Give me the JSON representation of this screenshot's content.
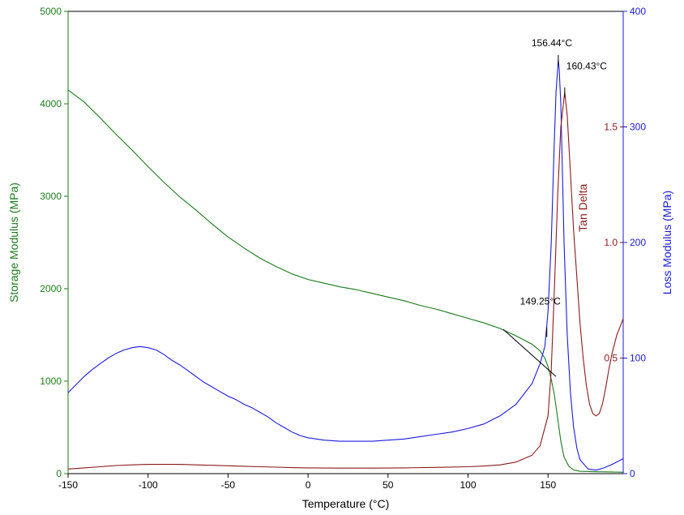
{
  "chart_data": {
    "type": "line",
    "title": "",
    "xlabel": "Temperature (°C)",
    "xlim": [
      -150,
      197
    ],
    "xticks": [
      -150,
      -100,
      -50,
      0,
      50,
      100,
      150
    ],
    "axes": {
      "left": {
        "label": "Storage Modulus (MPa)",
        "color": "#1a7a1a",
        "lim": [
          0,
          5000
        ],
        "ticks": [
          0,
          1000,
          2000,
          3000,
          4000,
          5000
        ]
      },
      "right": {
        "label": "Loss Modulus (MPa)",
        "color": "#1a1adc",
        "lim": [
          0,
          400
        ],
        "ticks": [
          0,
          100,
          200,
          300,
          400
        ]
      },
      "inner": {
        "label": "Tan Delta",
        "color": "#8b1a1a",
        "lim": [
          0,
          2.0
        ],
        "ticks": [
          "0.5",
          "1.0",
          "1.5"
        ],
        "tick_values": [
          0.5,
          1.0,
          1.5
        ]
      }
    },
    "series": [
      {
        "id": "storage",
        "axis": "left",
        "color": "#1a7a1a",
        "points": [
          [
            -150,
            4150
          ],
          [
            -140,
            4020
          ],
          [
            -130,
            3850
          ],
          [
            -120,
            3670
          ],
          [
            -110,
            3500
          ],
          [
            -100,
            3320
          ],
          [
            -90,
            3150
          ],
          [
            -80,
            2990
          ],
          [
            -70,
            2850
          ],
          [
            -60,
            2700
          ],
          [
            -50,
            2560
          ],
          [
            -40,
            2440
          ],
          [
            -30,
            2330
          ],
          [
            -20,
            2240
          ],
          [
            -10,
            2160
          ],
          [
            0,
            2100
          ],
          [
            10,
            2060
          ],
          [
            20,
            2020
          ],
          [
            30,
            1990
          ],
          [
            40,
            1950
          ],
          [
            50,
            1910
          ],
          [
            60,
            1870
          ],
          [
            70,
            1820
          ],
          [
            80,
            1780
          ],
          [
            90,
            1730
          ],
          [
            100,
            1680
          ],
          [
            110,
            1630
          ],
          [
            120,
            1570
          ],
          [
            130,
            1490
          ],
          [
            140,
            1400
          ],
          [
            145,
            1330
          ],
          [
            148,
            1250
          ],
          [
            150,
            1160
          ],
          [
            152,
            1020
          ],
          [
            154,
            850
          ],
          [
            156,
            600
          ],
          [
            158,
            350
          ],
          [
            160,
            180
          ],
          [
            163,
            80
          ],
          [
            166,
            40
          ],
          [
            170,
            25
          ],
          [
            180,
            20
          ],
          [
            190,
            18
          ],
          [
            197,
            15
          ]
        ]
      },
      {
        "id": "loss",
        "axis": "right",
        "color": "#1a1adc",
        "points": [
          [
            -150,
            70
          ],
          [
            -145,
            77
          ],
          [
            -140,
            84
          ],
          [
            -135,
            90
          ],
          [
            -130,
            95
          ],
          [
            -125,
            100
          ],
          [
            -120,
            104
          ],
          [
            -115,
            107
          ],
          [
            -110,
            109
          ],
          [
            -105,
            110
          ],
          [
            -100,
            109
          ],
          [
            -95,
            107
          ],
          [
            -90,
            103
          ],
          [
            -85,
            98
          ],
          [
            -80,
            94
          ],
          [
            -75,
            89
          ],
          [
            -70,
            84
          ],
          [
            -65,
            79
          ],
          [
            -60,
            75
          ],
          [
            -55,
            71
          ],
          [
            -50,
            67
          ],
          [
            -45,
            64
          ],
          [
            -40,
            60
          ],
          [
            -35,
            57
          ],
          [
            -30,
            53
          ],
          [
            -25,
            49
          ],
          [
            -20,
            44
          ],
          [
            -15,
            40
          ],
          [
            -10,
            36
          ],
          [
            -5,
            33
          ],
          [
            0,
            31
          ],
          [
            10,
            29
          ],
          [
            20,
            28
          ],
          [
            30,
            28
          ],
          [
            40,
            28
          ],
          [
            50,
            29
          ],
          [
            60,
            30
          ],
          [
            70,
            32
          ],
          [
            80,
            34
          ],
          [
            90,
            36
          ],
          [
            100,
            39
          ],
          [
            110,
            43
          ],
          [
            120,
            50
          ],
          [
            130,
            60
          ],
          [
            140,
            78
          ],
          [
            145,
            95
          ],
          [
            148,
            110
          ],
          [
            150,
            140
          ],
          [
            152,
            200
          ],
          [
            154,
            290
          ],
          [
            155,
            330
          ],
          [
            156.44,
            358
          ],
          [
            157,
            350
          ],
          [
            158,
            320
          ],
          [
            159,
            260
          ],
          [
            160,
            200
          ],
          [
            162,
            120
          ],
          [
            164,
            70
          ],
          [
            166,
            40
          ],
          [
            168,
            22
          ],
          [
            170,
            12
          ],
          [
            175,
            4
          ],
          [
            180,
            3
          ],
          [
            185,
            5
          ],
          [
            190,
            8
          ],
          [
            197,
            13
          ]
        ]
      },
      {
        "id": "tandelta",
        "axis": "inner",
        "color": "#8b1a1a",
        "points": [
          [
            -150,
            0.02
          ],
          [
            -140,
            0.025
          ],
          [
            -130,
            0.03
          ],
          [
            -120,
            0.035
          ],
          [
            -110,
            0.038
          ],
          [
            -100,
            0.04
          ],
          [
            -90,
            0.04
          ],
          [
            -80,
            0.04
          ],
          [
            -70,
            0.038
          ],
          [
            -60,
            0.036
          ],
          [
            -50,
            0.034
          ],
          [
            -40,
            0.032
          ],
          [
            -30,
            0.03
          ],
          [
            -20,
            0.028
          ],
          [
            -10,
            0.026
          ],
          [
            0,
            0.025
          ],
          [
            20,
            0.024
          ],
          [
            40,
            0.024
          ],
          [
            60,
            0.025
          ],
          [
            80,
            0.027
          ],
          [
            100,
            0.03
          ],
          [
            110,
            0.033
          ],
          [
            120,
            0.038
          ],
          [
            130,
            0.05
          ],
          [
            140,
            0.08
          ],
          [
            145,
            0.12
          ],
          [
            150,
            0.25
          ],
          [
            152,
            0.45
          ],
          [
            154,
            0.8
          ],
          [
            156,
            1.2
          ],
          [
            158,
            1.5
          ],
          [
            160.43,
            1.65
          ],
          [
            162,
            1.55
          ],
          [
            164,
            1.3
          ],
          [
            166,
            1.05
          ],
          [
            168,
            0.85
          ],
          [
            170,
            0.65
          ],
          [
            172,
            0.5
          ],
          [
            174,
            0.38
          ],
          [
            176,
            0.3
          ],
          [
            178,
            0.26
          ],
          [
            180,
            0.25
          ],
          [
            182,
            0.26
          ],
          [
            184,
            0.3
          ],
          [
            186,
            0.37
          ],
          [
            188,
            0.45
          ],
          [
            190,
            0.52
          ],
          [
            193,
            0.6
          ],
          [
            197,
            0.67
          ]
        ]
      }
    ],
    "onset_tangent": {
      "axis": "left",
      "points": [
        [
          122,
          1560
        ],
        [
          155,
          1050
        ]
      ]
    },
    "annotations": [
      {
        "id": "onset",
        "text": "149.25°C",
        "x": 149.25,
        "axis": "left",
        "y": 1530,
        "label_y": 1830
      },
      {
        "id": "loss-peak",
        "text": "156.44°C",
        "x": 156.44,
        "axis": "right",
        "y": 358,
        "label_y": 370
      },
      {
        "id": "tan-peak",
        "text": "160.43°C",
        "x": 160.43,
        "axis": "inner",
        "y": 1.65,
        "label_y": 1.75
      }
    ],
    "grid": false
  }
}
